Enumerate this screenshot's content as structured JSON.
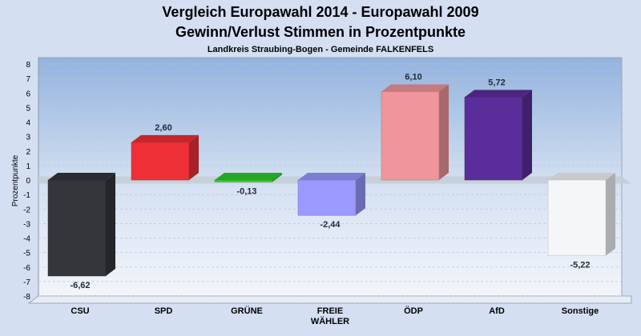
{
  "chart_data": {
    "type": "bar",
    "title": "Vergleich Europawahl 2014 - Europawahl 2009",
    "subtitle": "Gewinn/Verlust Stimmen in Prozentpunkte",
    "caption": "Landkreis Straubing-Bogen - Gemeinde FALKENFELS",
    "ylabel": "Prozentpunkte",
    "ylim": [
      -8,
      8
    ],
    "yticks": [
      8,
      7,
      6,
      5,
      4,
      3,
      2,
      1,
      0,
      -1,
      -2,
      -3,
      -4,
      -5,
      -6,
      -7,
      -8
    ],
    "categories": [
      {
        "lines": [
          "CSU"
        ]
      },
      {
        "lines": [
          "SPD"
        ]
      },
      {
        "lines": [
          "GRÜNE"
        ]
      },
      {
        "lines": [
          "FREIE",
          "WÄHLER"
        ]
      },
      {
        "lines": [
          "ÖDP"
        ]
      },
      {
        "lines": [
          "AfD"
        ]
      },
      {
        "lines": [
          "Sonstige"
        ]
      }
    ],
    "values": [
      -6.62,
      2.6,
      -0.13,
      -2.44,
      6.1,
      5.72,
      -5.22
    ],
    "value_labels": [
      "-6,62",
      "2,60",
      "-0,13",
      "-2,44",
      "6,10",
      "5,72",
      "-5,22"
    ],
    "colors": [
      "#34363b",
      "#ee2f36",
      "#2ecc2e",
      "#9999ff",
      "#f0959b",
      "#5b2d9a",
      "#f4f6fa"
    ],
    "grid": true
  }
}
